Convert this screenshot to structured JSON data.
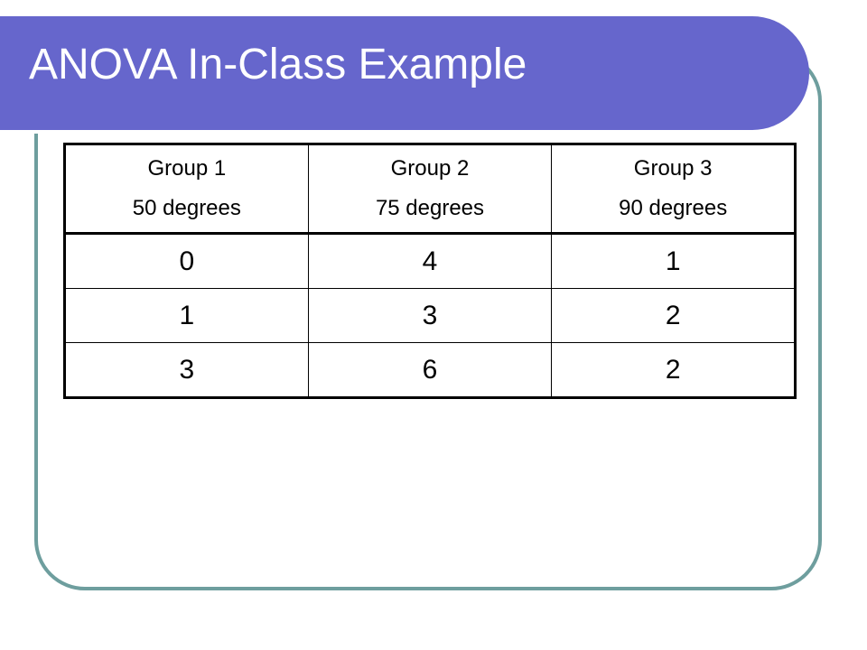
{
  "slide": {
    "title": "ANOVA In-Class Example"
  },
  "table": {
    "columns": [
      {
        "name": "Group 1",
        "condition": "50 degrees"
      },
      {
        "name": "Group 2",
        "condition": "75 degrees"
      },
      {
        "name": "Group 3",
        "condition": "90 degrees"
      }
    ],
    "rows": [
      [
        "0",
        "4",
        "1"
      ],
      [
        "1",
        "3",
        "2"
      ],
      [
        "3",
        "6",
        "2"
      ]
    ]
  },
  "colors": {
    "title_bar": "#6666cc",
    "frame_border": "#6e9e9e",
    "title_text": "#ffffff"
  }
}
